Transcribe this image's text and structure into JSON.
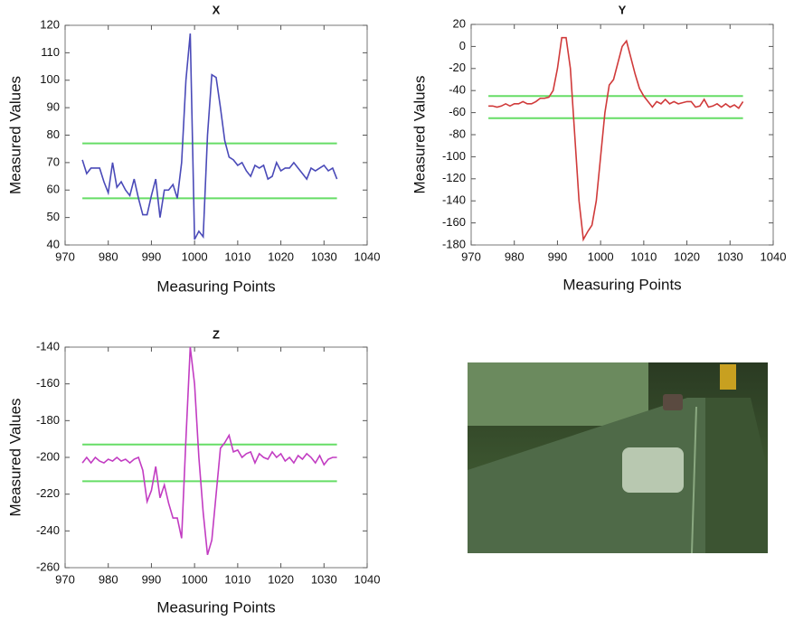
{
  "chart_data": [
    {
      "type": "line",
      "title": "X",
      "xlabel": "Measuring Points",
      "ylabel": "Measured Values",
      "x": [
        974,
        975,
        976,
        977,
        978,
        979,
        980,
        981,
        982,
        983,
        984,
        985,
        986,
        987,
        988,
        989,
        990,
        991,
        992,
        993,
        994,
        995,
        996,
        997,
        998,
        999,
        1000,
        1001,
        1002,
        1003,
        1004,
        1005,
        1006,
        1007,
        1008,
        1009,
        1010,
        1011,
        1012,
        1013,
        1014,
        1015,
        1016,
        1017,
        1018,
        1019,
        1020,
        1021,
        1022,
        1023,
        1024,
        1025,
        1026,
        1027,
        1028,
        1029,
        1030,
        1031,
        1032,
        1033
      ],
      "series": [
        {
          "color": "#4a4ab8",
          "values": [
            71,
            66,
            68,
            68,
            68,
            63,
            59,
            70,
            61,
            63,
            60,
            58,
            64,
            57,
            51,
            51,
            58,
            64,
            50,
            60,
            60,
            62,
            57,
            70,
            100,
            117,
            42,
            45,
            43,
            80,
            102,
            101,
            90,
            78,
            72,
            71,
            69,
            70,
            67,
            65,
            69,
            68,
            69,
            64,
            65,
            70,
            67,
            68,
            68,
            70,
            68,
            66,
            64,
            68,
            67,
            68,
            69,
            67,
            68,
            64
          ]
        }
      ],
      "reference_lines": [
        {
          "value": 77,
          "color": "#66dd66"
        },
        {
          "value": 57,
          "color": "#66dd66"
        }
      ],
      "xlim": [
        970,
        1040
      ],
      "xticks": [
        970,
        980,
        990,
        1000,
        1010,
        1020,
        1030,
        1040
      ],
      "ylim": [
        40,
        120
      ],
      "yticks": [
        40,
        50,
        60,
        70,
        80,
        90,
        100,
        110,
        120
      ]
    },
    {
      "type": "line",
      "title": "Y",
      "xlabel": "Measuring Points",
      "ylabel": "Measured Values",
      "x": [
        974,
        975,
        976,
        977,
        978,
        979,
        980,
        981,
        982,
        983,
        984,
        985,
        986,
        987,
        988,
        989,
        990,
        991,
        992,
        993,
        994,
        995,
        996,
        997,
        998,
        999,
        1000,
        1001,
        1002,
        1003,
        1004,
        1005,
        1006,
        1007,
        1008,
        1009,
        1010,
        1011,
        1012,
        1013,
        1014,
        1015,
        1016,
        1017,
        1018,
        1019,
        1020,
        1021,
        1022,
        1023,
        1024,
        1025,
        1026,
        1027,
        1028,
        1029,
        1030,
        1031,
        1032,
        1033
      ],
      "series": [
        {
          "color": "#d03a3a",
          "values": [
            -54,
            -54,
            -55,
            -54,
            -52,
            -54,
            -52,
            -52,
            -50,
            -52,
            -52,
            -50,
            -47,
            -47,
            -46,
            -40,
            -20,
            8,
            8,
            -20,
            -80,
            -140,
            -175,
            -168,
            -162,
            -140,
            -100,
            -60,
            -35,
            -30,
            -15,
            0,
            5,
            -10,
            -25,
            -38,
            -45,
            -50,
            -55,
            -50,
            -52,
            -48,
            -52,
            -50,
            -52,
            -51,
            -50,
            -50,
            -55,
            -54,
            -48,
            -55,
            -54,
            -52,
            -55,
            -52,
            -55,
            -53,
            -56,
            -50
          ]
        }
      ],
      "reference_lines": [
        {
          "value": -45,
          "color": "#66dd66"
        },
        {
          "value": -65,
          "color": "#66dd66"
        }
      ],
      "xlim": [
        970,
        1040
      ],
      "xticks": [
        970,
        980,
        990,
        1000,
        1010,
        1020,
        1030,
        1040
      ],
      "ylim": [
        -180,
        20
      ],
      "yticks": [
        -180,
        -160,
        -140,
        -120,
        -100,
        -80,
        -60,
        -40,
        -20,
        0,
        20
      ]
    },
    {
      "type": "line",
      "title": "Z",
      "xlabel": "Measuring Points",
      "ylabel": "Measured Values",
      "x": [
        974,
        975,
        976,
        977,
        978,
        979,
        980,
        981,
        982,
        983,
        984,
        985,
        986,
        987,
        988,
        989,
        990,
        991,
        992,
        993,
        994,
        995,
        996,
        997,
        998,
        999,
        1000,
        1001,
        1002,
        1003,
        1004,
        1005,
        1006,
        1007,
        1008,
        1009,
        1010,
        1011,
        1012,
        1013,
        1014,
        1015,
        1016,
        1017,
        1018,
        1019,
        1020,
        1021,
        1022,
        1023,
        1024,
        1025,
        1026,
        1027,
        1028,
        1029,
        1030,
        1031,
        1032,
        1033
      ],
      "series": [
        {
          "color": "#c23cc2",
          "values": [
            -203,
            -200,
            -203,
            -200,
            -202,
            -203,
            -201,
            -202,
            -200,
            -202,
            -201,
            -203,
            -201,
            -200,
            -207,
            -224,
            -218,
            -205,
            -222,
            -215,
            -225,
            -233,
            -233,
            -244,
            -190,
            -140,
            -160,
            -200,
            -230,
            -253,
            -245,
            -220,
            -195,
            -192,
            -188,
            -197,
            -196,
            -200,
            -198,
            -197,
            -203,
            -198,
            -200,
            -201,
            -197,
            -200,
            -198,
            -202,
            -200,
            -203,
            -199,
            -201,
            -198,
            -200,
            -203,
            -199,
            -204,
            -201,
            -200,
            -200
          ]
        }
      ],
      "reference_lines": [
        {
          "value": -193,
          "color": "#66dd66"
        },
        {
          "value": -213,
          "color": "#66dd66"
        }
      ],
      "xlim": [
        970,
        1040
      ],
      "xticks": [
        970,
        980,
        990,
        1000,
        1010,
        1020,
        1030,
        1040
      ],
      "ylim": [
        -260,
        -140
      ],
      "yticks": [
        -260,
        -240,
        -220,
        -200,
        -180,
        -160,
        -140
      ]
    }
  ]
}
